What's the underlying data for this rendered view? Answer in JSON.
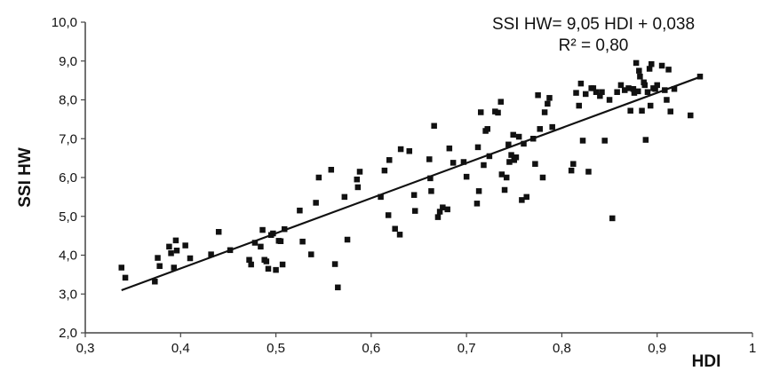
{
  "chart_data": {
    "type": "scatter",
    "xlabel": "HDI",
    "ylabel": "SSI HW",
    "xlim": [
      0.3,
      1.0
    ],
    "ylim": [
      2.0,
      10.0
    ],
    "x_ticks": [
      "0,3",
      "0,4",
      "0,5",
      "0,6",
      "0,7",
      "0,8",
      "0,9",
      "1"
    ],
    "y_ticks": [
      "2,0",
      "3,0",
      "4,0",
      "5,0",
      "6,0",
      "7,0",
      "8,0",
      "9,0",
      "10,0"
    ],
    "grid": false,
    "legend": "none",
    "marker_color": "#111111",
    "annotations": {
      "equation": "SSI HW= 9,05 HDI + 0,038",
      "r_squared": "R² = 0,80"
    },
    "trendline": {
      "slope": 9.05,
      "intercept": 0.038,
      "x_range": [
        0.338,
        0.945
      ]
    },
    "points": [
      [
        0.338,
        3.68
      ],
      [
        0.342,
        3.42
      ],
      [
        0.373,
        3.32
      ],
      [
        0.376,
        3.93
      ],
      [
        0.378,
        3.72
      ],
      [
        0.388,
        4.22
      ],
      [
        0.39,
        4.05
      ],
      [
        0.393,
        3.68
      ],
      [
        0.395,
        4.38
      ],
      [
        0.396,
        4.12
      ],
      [
        0.405,
        4.25
      ],
      [
        0.41,
        3.92
      ],
      [
        0.432,
        4.02
      ],
      [
        0.44,
        4.6
      ],
      [
        0.452,
        4.13
      ],
      [
        0.472,
        3.88
      ],
      [
        0.474,
        3.76
      ],
      [
        0.478,
        4.32
      ],
      [
        0.484,
        4.22
      ],
      [
        0.486,
        4.65
      ],
      [
        0.488,
        3.88
      ],
      [
        0.49,
        3.84
      ],
      [
        0.492,
        3.65
      ],
      [
        0.495,
        4.52
      ],
      [
        0.497,
        4.56
      ],
      [
        0.5,
        3.62
      ],
      [
        0.503,
        4.37
      ],
      [
        0.505,
        4.36
      ],
      [
        0.507,
        3.76
      ],
      [
        0.509,
        4.67
      ],
      [
        0.525,
        5.15
      ],
      [
        0.528,
        4.35
      ],
      [
        0.537,
        4.02
      ],
      [
        0.542,
        5.35
      ],
      [
        0.545,
        6.0
      ],
      [
        0.558,
        6.2
      ],
      [
        0.562,
        3.77
      ],
      [
        0.565,
        3.17
      ],
      [
        0.572,
        5.5
      ],
      [
        0.575,
        4.4
      ],
      [
        0.586,
        5.75
      ],
      [
        0.588,
        6.15
      ],
      [
        0.585,
        5.95
      ],
      [
        0.61,
        5.5
      ],
      [
        0.614,
        6.18
      ],
      [
        0.618,
        5.03
      ],
      [
        0.619,
        6.45
      ],
      [
        0.625,
        4.68
      ],
      [
        0.63,
        4.53
      ],
      [
        0.631,
        6.73
      ],
      [
        0.64,
        6.68
      ],
      [
        0.645,
        5.55
      ],
      [
        0.646,
        5.14
      ],
      [
        0.661,
        6.47
      ],
      [
        0.662,
        5.98
      ],
      [
        0.663,
        5.65
      ],
      [
        0.666,
        7.33
      ],
      [
        0.67,
        4.98
      ],
      [
        0.672,
        5.12
      ],
      [
        0.675,
        5.23
      ],
      [
        0.68,
        5.18
      ],
      [
        0.682,
        6.75
      ],
      [
        0.686,
        6.38
      ],
      [
        0.697,
        6.4
      ],
      [
        0.7,
        6.02
      ],
      [
        0.711,
        5.33
      ],
      [
        0.712,
        6.78
      ],
      [
        0.713,
        5.65
      ],
      [
        0.715,
        7.68
      ],
      [
        0.718,
        6.32
      ],
      [
        0.72,
        7.2
      ],
      [
        0.722,
        7.25
      ],
      [
        0.724,
        6.55
      ],
      [
        0.73,
        7.7
      ],
      [
        0.733,
        7.67
      ],
      [
        0.736,
        7.95
      ],
      [
        0.737,
        6.08
      ],
      [
        0.74,
        5.68
      ],
      [
        0.742,
        6.0
      ],
      [
        0.744,
        6.85
      ],
      [
        0.745,
        6.4
      ],
      [
        0.747,
        6.58
      ],
      [
        0.749,
        7.1
      ],
      [
        0.75,
        6.45
      ],
      [
        0.752,
        6.52
      ],
      [
        0.755,
        7.05
      ],
      [
        0.758,
        5.42
      ],
      [
        0.76,
        6.87
      ],
      [
        0.763,
        5.5
      ],
      [
        0.77,
        7.0
      ],
      [
        0.772,
        6.35
      ],
      [
        0.775,
        8.12
      ],
      [
        0.777,
        7.25
      ],
      [
        0.78,
        6.0
      ],
      [
        0.782,
        7.68
      ],
      [
        0.785,
        7.9
      ],
      [
        0.787,
        8.05
      ],
      [
        0.79,
        7.3
      ],
      [
        0.81,
        6.18
      ],
      [
        0.812,
        6.35
      ],
      [
        0.815,
        8.18
      ],
      [
        0.818,
        7.85
      ],
      [
        0.82,
        8.42
      ],
      [
        0.822,
        6.95
      ],
      [
        0.825,
        8.15
      ],
      [
        0.828,
        6.15
      ],
      [
        0.831,
        8.3
      ],
      [
        0.833,
        8.3
      ],
      [
        0.836,
        8.2
      ],
      [
        0.84,
        8.1
      ],
      [
        0.842,
        8.2
      ],
      [
        0.845,
        6.95
      ],
      [
        0.85,
        8.0
      ],
      [
        0.853,
        4.95
      ],
      [
        0.858,
        8.2
      ],
      [
        0.862,
        8.38
      ],
      [
        0.866,
        8.25
      ],
      [
        0.87,
        8.3
      ],
      [
        0.872,
        7.72
      ],
      [
        0.875,
        8.28
      ],
      [
        0.876,
        8.18
      ],
      [
        0.878,
        8.95
      ],
      [
        0.88,
        8.22
      ],
      [
        0.881,
        8.75
      ],
      [
        0.882,
        8.6
      ],
      [
        0.884,
        7.72
      ],
      [
        0.886,
        8.45
      ],
      [
        0.887,
        8.38
      ],
      [
        0.888,
        6.97
      ],
      [
        0.89,
        8.2
      ],
      [
        0.892,
        8.8
      ],
      [
        0.893,
        7.85
      ],
      [
        0.894,
        8.92
      ],
      [
        0.896,
        8.3
      ],
      [
        0.898,
        8.28
      ],
      [
        0.9,
        8.38
      ],
      [
        0.905,
        8.88
      ],
      [
        0.908,
        8.25
      ],
      [
        0.91,
        8.0
      ],
      [
        0.912,
        8.78
      ],
      [
        0.914,
        7.7
      ],
      [
        0.918,
        8.28
      ],
      [
        0.935,
        7.6
      ],
      [
        0.945,
        8.6
      ]
    ]
  }
}
